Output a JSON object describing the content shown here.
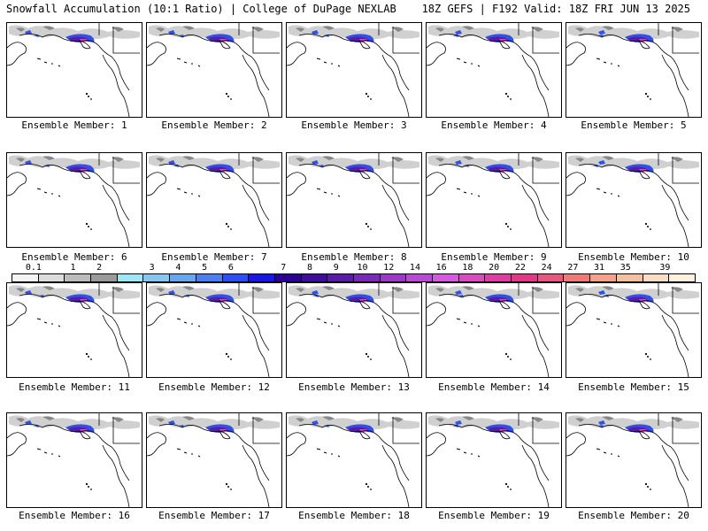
{
  "header": {
    "title_left": "Snowfall Accumulation (10:1 Ratio) | College of DuPage NEXLAB",
    "title_right": "18Z GEFS | F192 Valid: 18Z FRI JUN 13 2025"
  },
  "panels": [
    {
      "label": "Ensemble Member: 1"
    },
    {
      "label": "Ensemble Member: 2"
    },
    {
      "label": "Ensemble Member: 3"
    },
    {
      "label": "Ensemble Member: 4"
    },
    {
      "label": "Ensemble Member: 5"
    },
    {
      "label": "Ensemble Member: 6"
    },
    {
      "label": "Ensemble Member: 7"
    },
    {
      "label": "Ensemble Member: 8"
    },
    {
      "label": "Ensemble Member: 9"
    },
    {
      "label": "Ensemble Member: 10"
    },
    {
      "label": "Ensemble Member: 11"
    },
    {
      "label": "Ensemble Member: 12"
    },
    {
      "label": "Ensemble Member: 13"
    },
    {
      "label": "Ensemble Member: 14"
    },
    {
      "label": "Ensemble Member: 15"
    },
    {
      "label": "Ensemble Member: 16"
    },
    {
      "label": "Ensemble Member: 17"
    },
    {
      "label": "Ensemble Member: 18"
    },
    {
      "label": "Ensemble Member: 19"
    },
    {
      "label": "Ensemble Member: 20"
    }
  ],
  "colorbar": {
    "ticks": [
      "0.1",
      "1",
      "2",
      "3",
      "4",
      "5",
      "6",
      "7",
      "8",
      "9",
      "10",
      "12",
      "14",
      "16",
      "18",
      "20",
      "22",
      "24",
      "27",
      "31",
      "35",
      "39"
    ],
    "colors": [
      "#f4f4f4",
      "#dcdcdc",
      "#bcbcbc",
      "#9a9a9a",
      "#9fe7f4",
      "#88c6f2",
      "#6aa6ee",
      "#4d7ef0",
      "#2d4ef0",
      "#1a16e6",
      "#2a0096",
      "#400e9c",
      "#5a1ca8",
      "#7a2ab8",
      "#9a3ac8",
      "#b84ad6",
      "#d45ae0",
      "#d84cc0",
      "#dc3ea2",
      "#e03a86",
      "#e6567e",
      "#ee7a7a",
      "#f4a08a",
      "#f6c0a0",
      "#f8dcc4",
      "#fff0e0"
    ]
  },
  "map": {
    "snow_colors": {
      "light": "#c8c8c8",
      "mid": "#888888",
      "blue": "#3050e8",
      "purple": "#5a1ca8",
      "pink": "#d64cc0"
    }
  }
}
